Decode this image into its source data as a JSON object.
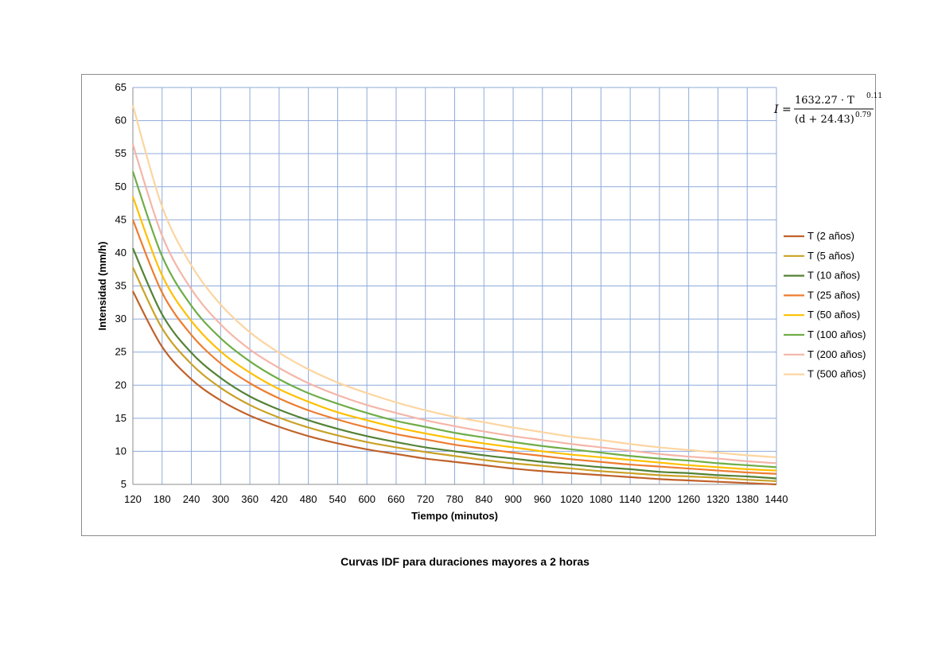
{
  "caption": "Curvas IDF para duraciones mayores a 2 horas",
  "formula": {
    "lhs": "I =",
    "numerator": "1632.27 · T",
    "numerator_exp": "0.11",
    "denominator": "(d + 24.43)",
    "denominator_exp": "0.79"
  },
  "chart_data": {
    "type": "line",
    "title": "",
    "xlabel": "Tiempo (minutos)",
    "ylabel": "Intensidad (mm/h)",
    "xlim": [
      120,
      1440
    ],
    "ylim": [
      5,
      65
    ],
    "x_ticks": [
      120,
      180,
      240,
      300,
      360,
      420,
      480,
      540,
      600,
      660,
      720,
      780,
      840,
      900,
      960,
      1020,
      1080,
      1140,
      1200,
      1260,
      1320,
      1380,
      1440
    ],
    "y_ticks": [
      5,
      10,
      15,
      20,
      25,
      30,
      35,
      40,
      45,
      50,
      55,
      60,
      65
    ],
    "grid": true,
    "legend_position": "right",
    "x": [
      120,
      180,
      240,
      300,
      360,
      420,
      480,
      540,
      600,
      660,
      720,
      780,
      840,
      900,
      960,
      1020,
      1080,
      1140,
      1200,
      1260,
      1320,
      1380,
      1440
    ],
    "series": [
      {
        "name": "T (2 años)",
        "color": "#c0622a",
        "values": [
          34.2,
          25.8,
          20.9,
          17.7,
          15.4,
          13.7,
          12.3,
          11.2,
          10.3,
          9.6,
          8.9,
          8.4,
          7.9,
          7.4,
          7.0,
          6.7,
          6.4,
          6.1,
          5.8,
          5.6,
          5.4,
          5.2,
          5.0
        ]
      },
      {
        "name": "T (5 años)",
        "color": "#c9a227",
        "values": [
          37.8,
          28.6,
          23.2,
          19.6,
          17.0,
          15.1,
          13.6,
          12.4,
          11.4,
          10.6,
          9.9,
          9.3,
          8.7,
          8.2,
          7.8,
          7.4,
          7.0,
          6.7,
          6.4,
          6.2,
          6.0,
          5.7,
          5.5
        ]
      },
      {
        "name": "T (10 años)",
        "color": "#548235",
        "values": [
          40.7,
          30.7,
          24.9,
          21.1,
          18.3,
          16.3,
          14.7,
          13.4,
          12.3,
          11.4,
          10.6,
          10.0,
          9.4,
          8.9,
          8.4,
          8.0,
          7.6,
          7.3,
          6.9,
          6.7,
          6.4,
          6.2,
          5.9
        ]
      },
      {
        "name": "T (25 años)",
        "color": "#ed7d31",
        "values": [
          45.0,
          34.0,
          27.6,
          23.3,
          20.3,
          18.0,
          16.2,
          14.8,
          13.6,
          12.6,
          11.8,
          11.0,
          10.4,
          9.8,
          9.3,
          8.8,
          8.4,
          8.0,
          7.7,
          7.4,
          7.1,
          6.8,
          6.6
        ]
      },
      {
        "name": "T (50 años)",
        "color": "#ffc000",
        "values": [
          48.5,
          36.6,
          29.7,
          25.1,
          21.9,
          19.4,
          17.5,
          15.9,
          14.7,
          13.6,
          12.7,
          11.9,
          11.2,
          10.6,
          10.0,
          9.5,
          9.1,
          8.7,
          8.3,
          7.9,
          7.6,
          7.3,
          7.1
        ]
      },
      {
        "name": "T (100 años)",
        "color": "#70ad47",
        "values": [
          52.3,
          39.5,
          32.0,
          27.1,
          23.6,
          20.9,
          18.8,
          17.2,
          15.8,
          14.6,
          13.7,
          12.8,
          12.1,
          11.4,
          10.8,
          10.3,
          9.8,
          9.3,
          8.9,
          8.6,
          8.2,
          7.9,
          7.6
        ]
      },
      {
        "name": "T (200 años)",
        "color": "#f4b6a8",
        "values": [
          56.4,
          42.6,
          34.5,
          29.2,
          25.4,
          22.6,
          20.3,
          18.5,
          17.0,
          15.8,
          14.7,
          13.8,
          13.0,
          12.3,
          11.7,
          11.1,
          10.6,
          10.1,
          9.6,
          9.2,
          8.9,
          8.5,
          8.2
        ]
      },
      {
        "name": "T (500 años)",
        "color": "#fcd5a0",
        "values": [
          62.3,
          47.0,
          38.1,
          32.2,
          28.0,
          24.9,
          22.4,
          20.4,
          18.8,
          17.4,
          16.2,
          15.2,
          14.4,
          13.6,
          12.9,
          12.2,
          11.7,
          11.1,
          10.6,
          10.2,
          9.8,
          9.4,
          9.1
        ]
      }
    ]
  }
}
